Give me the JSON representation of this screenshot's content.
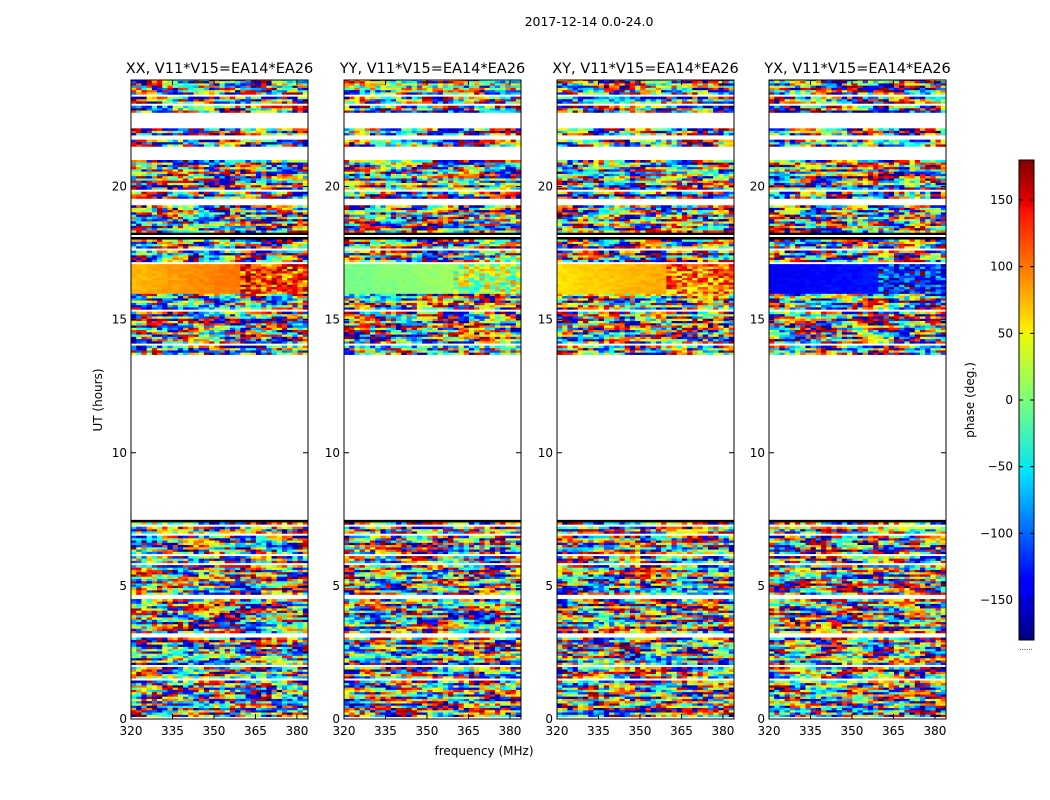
{
  "figure": {
    "suptitle": "2017-12-14 0.0-24.0",
    "xlabel": "frequency (MHz)",
    "ylabel": "UT (hours)",
    "colorbar_label": "phase (deg.)",
    "colorbar_footnote": "......"
  },
  "chart_data": {
    "type": "heatmap",
    "colormap": "jet",
    "x_range": [
      320,
      384
    ],
    "x_ticks": [
      320,
      335,
      350,
      365,
      380
    ],
    "y_range": [
      0,
      24
    ],
    "y_ticks": [
      0,
      5,
      10,
      15,
      20
    ],
    "color_range": [
      -180,
      180
    ],
    "colorbar_ticks": [
      150,
      100,
      50,
      0,
      -50,
      -100,
      -150
    ],
    "empty_ut_ranges": [
      [
        7.5,
        13.7
      ]
    ],
    "panels": [
      {
        "title": "XX, V11*V15=EA14*EA26",
        "coherent_bands": [
          {
            "ut": [
              16.0,
              17.1
            ],
            "phase_low_freq": 70,
            "phase_high_freq": 110
          }
        ]
      },
      {
        "title": "YY, V11*V15=EA14*EA26",
        "coherent_bands": [
          {
            "ut": [
              16.0,
              17.1
            ],
            "phase_low_freq": -5,
            "phase_high_freq": 20
          }
        ]
      },
      {
        "title": "XY, V11*V15=EA14*EA26",
        "coherent_bands": [
          {
            "ut": [
              16.0,
              17.1
            ],
            "phase_low_freq": 55,
            "phase_high_freq": 90
          }
        ]
      },
      {
        "title": "YX, V11*V15=EA14*EA26",
        "coherent_bands": [
          {
            "ut": [
              16.0,
              17.1
            ],
            "phase_low_freq": -140,
            "phase_high_freq": -120
          }
        ]
      }
    ]
  }
}
